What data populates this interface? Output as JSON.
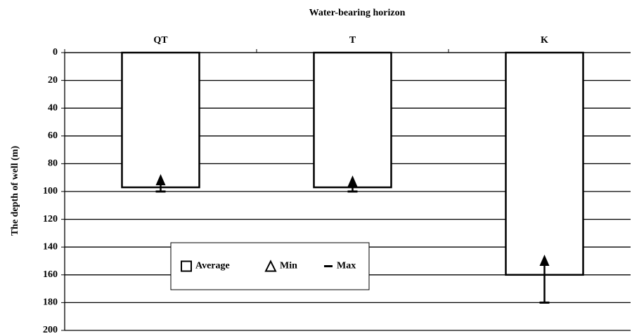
{
  "chart_data": {
    "type": "bar",
    "title": "Water-bearing horizon",
    "y_label": "The depth of well (m)",
    "categories": [
      "QT",
      "T",
      "K"
    ],
    "series": [
      {
        "name": "Average",
        "color": "#ffffff",
        "values": [
          97,
          97,
          160
        ]
      },
      {
        "name": "Min",
        "color": "#000000",
        "values": [
          92,
          93,
          150
        ]
      },
      {
        "name": "Max",
        "color": "#000000",
        "values": [
          100,
          100,
          180
        ]
      }
    ],
    "ylim": [
      0,
      200
    ],
    "yticks": [
      0,
      20,
      40,
      60,
      80,
      100,
      120,
      140,
      160,
      180,
      200
    ],
    "y_inverted": true,
    "grid": true,
    "legend": "lower left"
  }
}
